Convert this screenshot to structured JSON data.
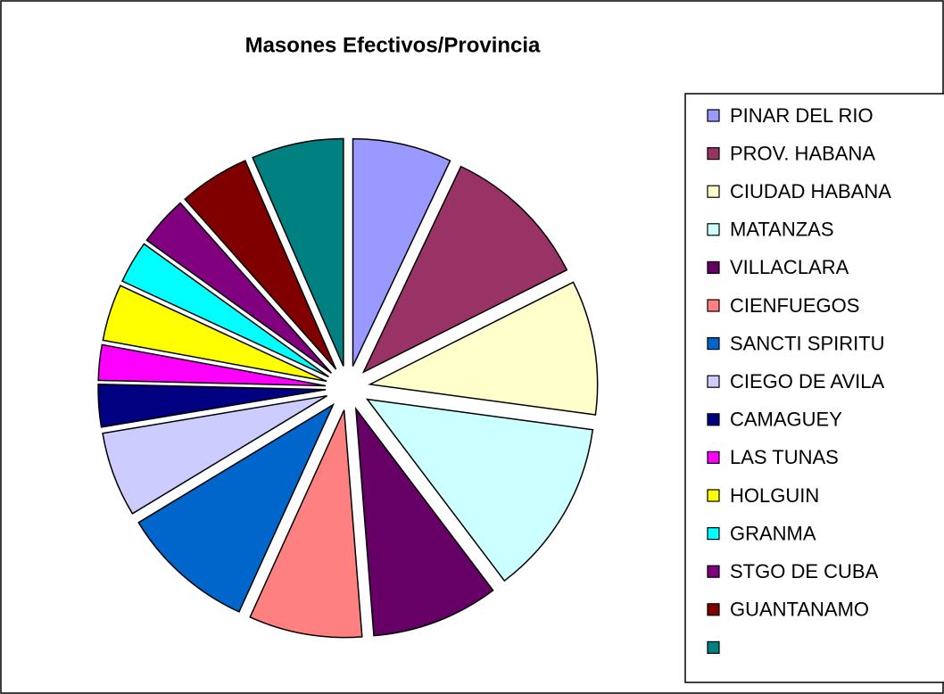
{
  "chart_data": {
    "type": "pie",
    "title": "Masones Efectivos/Provincia",
    "categories": [
      "PINAR DEL RIO",
      "PROV. HABANA",
      "CIUDAD HABANA",
      "MATANZAS",
      "VILLACLARA",
      "CIENFUEGOS",
      "SANCTI SPIRITU",
      "CIEGO DE AVILA",
      "CAMAGUEY",
      "LAS TUNAS",
      "HOLGUIN",
      "GRANMA",
      "STGO DE CUBA",
      "GUANTANAMO",
      null
    ],
    "values": [
      7,
      10.5,
      9.5,
      12.5,
      9,
      8,
      9.5,
      6,
      3,
      2.5,
      4,
      3,
      3.5,
      5,
      6.5
    ],
    "colors": [
      "#9999ff",
      "#993366",
      "#ffffcc",
      "#ccffff",
      "#660066",
      "#ff8080",
      "#0066cc",
      "#ccccff",
      "#000080",
      "#ff00ff",
      "#ffff00",
      "#00ffff",
      "#800080",
      "#800000",
      "#008080"
    ],
    "exploded": true
  }
}
